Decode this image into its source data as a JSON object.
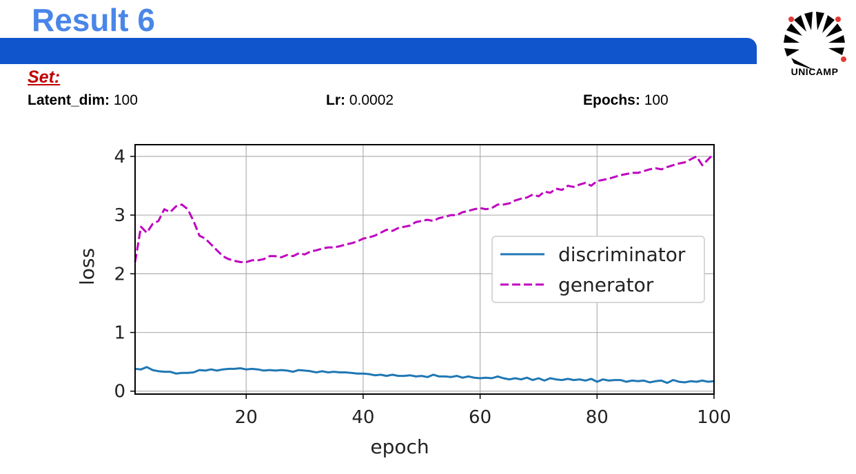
{
  "slide": {
    "title": "Result 6",
    "logo_text": "UNICAMP",
    "set_label": "Set:",
    "params": [
      {
        "key": "Latent_dim:",
        "value": "100"
      },
      {
        "key": "Lr:",
        "value": "0.0002"
      },
      {
        "key": "Epochs:",
        "value": "100"
      }
    ],
    "colors": {
      "title": "#4a86e8",
      "band": "#1155cc",
      "set": "#c00000"
    }
  },
  "chart_data": {
    "type": "line",
    "xlabel": "epoch",
    "ylabel": "loss",
    "xlim": [
      1,
      100
    ],
    "ylim": [
      -0.05,
      4.2
    ],
    "xticks": [
      20,
      40,
      60,
      80,
      100
    ],
    "yticks": [
      0,
      1,
      2,
      3,
      4
    ],
    "grid": true,
    "legend_position": "center-right",
    "x": [
      1,
      2,
      3,
      4,
      5,
      6,
      7,
      8,
      9,
      10,
      11,
      12,
      13,
      14,
      15,
      16,
      17,
      18,
      19,
      20,
      21,
      22,
      23,
      24,
      25,
      26,
      27,
      28,
      29,
      30,
      31,
      32,
      33,
      34,
      35,
      36,
      37,
      38,
      39,
      40,
      41,
      42,
      43,
      44,
      45,
      46,
      47,
      48,
      49,
      50,
      51,
      52,
      53,
      54,
      55,
      56,
      57,
      58,
      59,
      60,
      61,
      62,
      63,
      64,
      65,
      66,
      67,
      68,
      69,
      70,
      71,
      72,
      73,
      74,
      75,
      76,
      77,
      78,
      79,
      80,
      81,
      82,
      83,
      84,
      85,
      86,
      87,
      88,
      89,
      90,
      91,
      92,
      93,
      94,
      95,
      96,
      97,
      98,
      99,
      100
    ],
    "series": [
      {
        "name": "discriminator",
        "color": "#1f77b4",
        "style": "solid",
        "values": [
          0.38,
          0.37,
          0.41,
          0.36,
          0.34,
          0.33,
          0.33,
          0.3,
          0.31,
          0.31,
          0.32,
          0.36,
          0.35,
          0.37,
          0.35,
          0.37,
          0.38,
          0.38,
          0.39,
          0.37,
          0.38,
          0.37,
          0.35,
          0.36,
          0.35,
          0.36,
          0.35,
          0.33,
          0.36,
          0.35,
          0.34,
          0.32,
          0.34,
          0.32,
          0.33,
          0.32,
          0.32,
          0.31,
          0.3,
          0.3,
          0.29,
          0.27,
          0.28,
          0.26,
          0.28,
          0.26,
          0.26,
          0.27,
          0.25,
          0.26,
          0.24,
          0.28,
          0.25,
          0.25,
          0.24,
          0.26,
          0.23,
          0.25,
          0.23,
          0.22,
          0.23,
          0.22,
          0.25,
          0.22,
          0.2,
          0.22,
          0.2,
          0.23,
          0.19,
          0.22,
          0.18,
          0.22,
          0.2,
          0.19,
          0.21,
          0.19,
          0.2,
          0.18,
          0.21,
          0.16,
          0.2,
          0.18,
          0.19,
          0.19,
          0.16,
          0.18,
          0.17,
          0.18,
          0.15,
          0.17,
          0.18,
          0.14,
          0.19,
          0.16,
          0.15,
          0.17,
          0.16,
          0.18,
          0.16,
          0.17
        ]
      },
      {
        "name": "generator",
        "color": "#bf00bf",
        "style": "dashed",
        "values": [
          2.2,
          2.8,
          2.7,
          2.85,
          2.9,
          3.1,
          3.05,
          3.15,
          3.18,
          3.1,
          2.9,
          2.65,
          2.6,
          2.5,
          2.4,
          2.3,
          2.25,
          2.22,
          2.2,
          2.2,
          2.23,
          2.23,
          2.25,
          2.3,
          2.3,
          2.28,
          2.32,
          2.3,
          2.35,
          2.33,
          2.38,
          2.4,
          2.43,
          2.45,
          2.45,
          2.47,
          2.5,
          2.52,
          2.55,
          2.6,
          2.62,
          2.65,
          2.7,
          2.75,
          2.73,
          2.78,
          2.8,
          2.82,
          2.88,
          2.9,
          2.92,
          2.9,
          2.95,
          2.97,
          3.0,
          3.0,
          3.05,
          3.07,
          3.1,
          3.12,
          3.1,
          3.12,
          3.18,
          3.18,
          3.2,
          3.25,
          3.28,
          3.3,
          3.35,
          3.32,
          3.4,
          3.38,
          3.45,
          3.43,
          3.5,
          3.48,
          3.52,
          3.55,
          3.5,
          3.58,
          3.6,
          3.62,
          3.65,
          3.68,
          3.7,
          3.72,
          3.72,
          3.75,
          3.78,
          3.8,
          3.78,
          3.82,
          3.85,
          3.88,
          3.9,
          3.95,
          4.0,
          3.85,
          3.95,
          4.05
        ]
      }
    ]
  }
}
